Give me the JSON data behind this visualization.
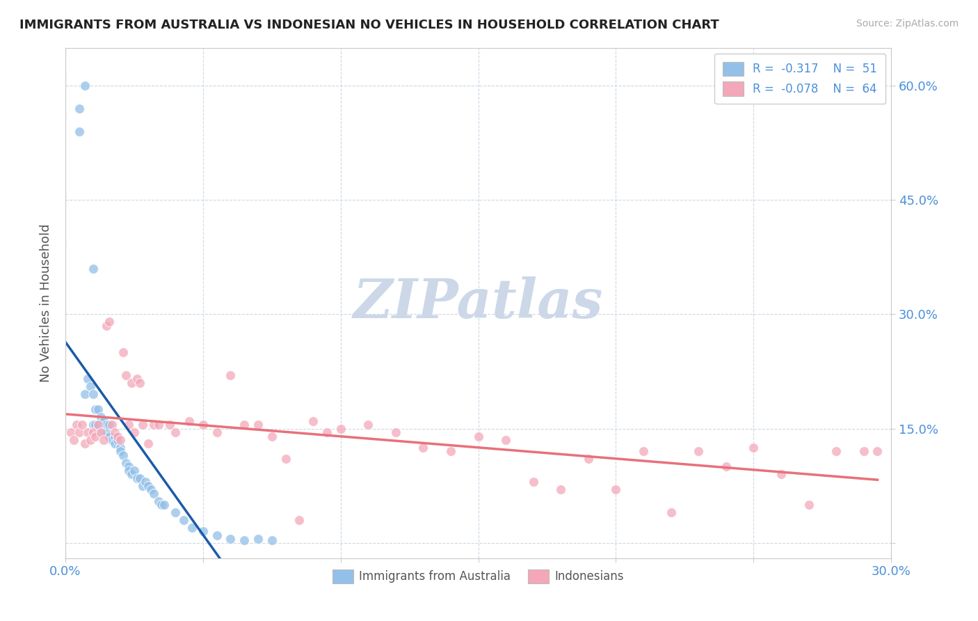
{
  "title": "IMMIGRANTS FROM AUSTRALIA VS INDONESIAN NO VEHICLES IN HOUSEHOLD CORRELATION CHART",
  "source_text": "Source: ZipAtlas.com",
  "ylabel": "No Vehicles in Household",
  "xlim": [
    0.0,
    0.3
  ],
  "ylim": [
    -0.02,
    0.65
  ],
  "color_blue": "#92c0e8",
  "color_pink": "#f4a7b9",
  "color_blue_line": "#1a5aaa",
  "color_pink_line": "#e8707a",
  "watermark_text": "ZIPatlas",
  "watermark_color": "#ccd8e8",
  "australia_x": [
    0.005,
    0.007,
    0.005,
    0.008,
    0.009,
    0.007,
    0.01,
    0.01,
    0.011,
    0.01,
    0.012,
    0.011,
    0.013,
    0.012,
    0.013,
    0.014,
    0.015,
    0.015,
    0.016,
    0.016,
    0.017,
    0.018,
    0.018,
    0.019,
    0.02,
    0.02,
    0.021,
    0.022,
    0.023,
    0.023,
    0.024,
    0.025,
    0.026,
    0.027,
    0.028,
    0.029,
    0.03,
    0.031,
    0.032,
    0.034,
    0.035,
    0.036,
    0.04,
    0.043,
    0.046,
    0.05,
    0.055,
    0.06,
    0.065,
    0.07,
    0.075
  ],
  "australia_y": [
    0.57,
    0.6,
    0.54,
    0.215,
    0.205,
    0.195,
    0.36,
    0.195,
    0.175,
    0.155,
    0.175,
    0.155,
    0.165,
    0.155,
    0.145,
    0.16,
    0.155,
    0.145,
    0.155,
    0.14,
    0.135,
    0.14,
    0.13,
    0.135,
    0.125,
    0.12,
    0.115,
    0.105,
    0.1,
    0.095,
    0.09,
    0.095,
    0.085,
    0.085,
    0.075,
    0.08,
    0.075,
    0.07,
    0.065,
    0.055,
    0.05,
    0.05,
    0.04,
    0.03,
    0.02,
    0.015,
    0.01,
    0.005,
    0.003,
    0.005,
    0.003
  ],
  "indonesian_x": [
    0.002,
    0.003,
    0.004,
    0.005,
    0.006,
    0.007,
    0.008,
    0.009,
    0.01,
    0.011,
    0.012,
    0.013,
    0.014,
    0.015,
    0.016,
    0.017,
    0.018,
    0.019,
    0.02,
    0.021,
    0.022,
    0.023,
    0.024,
    0.025,
    0.026,
    0.027,
    0.028,
    0.03,
    0.032,
    0.034,
    0.038,
    0.04,
    0.045,
    0.05,
    0.055,
    0.06,
    0.065,
    0.07,
    0.075,
    0.08,
    0.085,
    0.09,
    0.095,
    0.1,
    0.11,
    0.12,
    0.13,
    0.14,
    0.15,
    0.16,
    0.17,
    0.18,
    0.19,
    0.2,
    0.21,
    0.22,
    0.23,
    0.24,
    0.25,
    0.26,
    0.27,
    0.28,
    0.29,
    0.295
  ],
  "indonesian_y": [
    0.145,
    0.135,
    0.155,
    0.145,
    0.155,
    0.13,
    0.145,
    0.135,
    0.145,
    0.14,
    0.155,
    0.145,
    0.135,
    0.285,
    0.29,
    0.155,
    0.145,
    0.14,
    0.135,
    0.25,
    0.22,
    0.155,
    0.21,
    0.145,
    0.215,
    0.21,
    0.155,
    0.13,
    0.155,
    0.155,
    0.155,
    0.145,
    0.16,
    0.155,
    0.145,
    0.22,
    0.155,
    0.155,
    0.14,
    0.11,
    0.03,
    0.16,
    0.145,
    0.15,
    0.155,
    0.145,
    0.125,
    0.12,
    0.14,
    0.135,
    0.08,
    0.07,
    0.11,
    0.07,
    0.12,
    0.04,
    0.12,
    0.1,
    0.125,
    0.09,
    0.05,
    0.12,
    0.12,
    0.12
  ]
}
